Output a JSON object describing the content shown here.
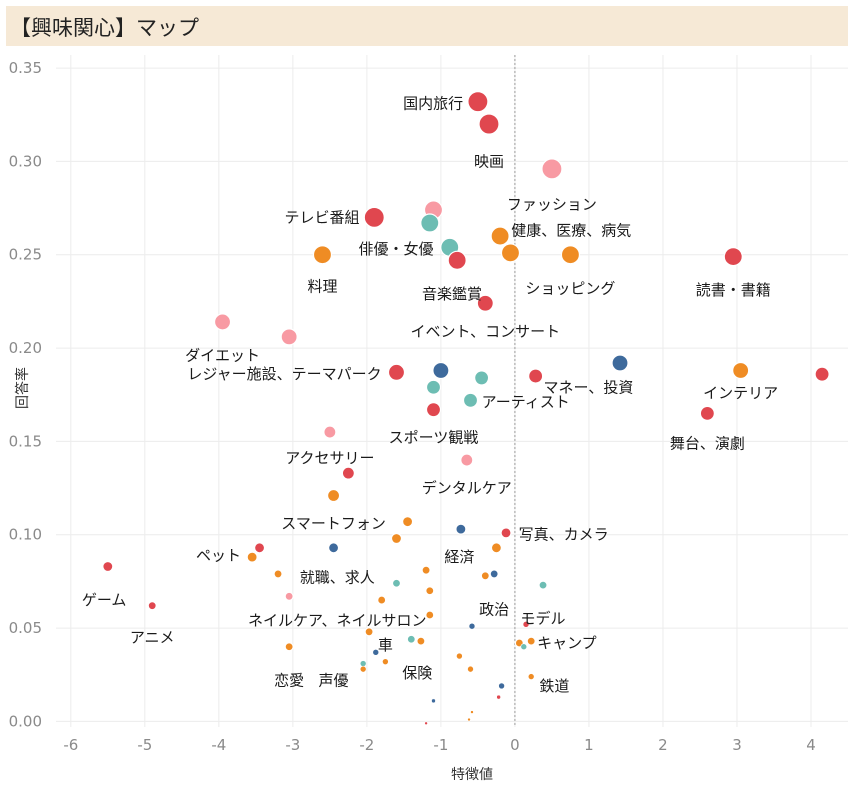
{
  "header": {
    "title": "【興味関心】マップ"
  },
  "colors": {
    "red": "#e0474f",
    "pink": "#f89aa3",
    "orange": "#ef8c24",
    "teal": "#6dbdb3",
    "blue": "#3e6a9c",
    "title_bg": "#f6e9d6",
    "grid": "#ececec",
    "zero_line": "#9a9a9a"
  },
  "chart_data": {
    "type": "scatter",
    "title": "【興味関心】マップ",
    "xlabel": "特徴値",
    "ylabel": "回答率",
    "xlim": [
      -6.2,
      4.5
    ],
    "ylim": [
      -0.003,
      0.357
    ],
    "xticks": [
      "-6",
      "-5",
      "-4",
      "-3",
      "-2",
      "-1",
      "0",
      "1",
      "2",
      "3",
      "4"
    ],
    "yticks": [
      "0.00",
      "0.05",
      "0.10",
      "0.15",
      "0.20",
      "0.25",
      "0.30",
      "0.35"
    ],
    "grid": true,
    "points": [
      {
        "x": -0.5,
        "y": 0.332,
        "c": "red",
        "s": 10,
        "label": "国内旅行",
        "lx": -0.7,
        "ly": 0.331,
        "anchor": "end"
      },
      {
        "x": -0.35,
        "y": 0.32,
        "c": "red",
        "s": 10,
        "label": "映画",
        "lx": -0.35,
        "ly": 0.3,
        "anchor": "middle"
      },
      {
        "x": 0.5,
        "y": 0.296,
        "c": "pink",
        "s": 10,
        "label": "ファッション",
        "lx": 0.5,
        "ly": 0.277,
        "anchor": "middle"
      },
      {
        "x": -1.9,
        "y": 0.27,
        "c": "red",
        "s": 10,
        "label": "テレビ番組",
        "lx": -2.1,
        "ly": 0.27,
        "anchor": "end"
      },
      {
        "x": -1.1,
        "y": 0.274,
        "c": "pink",
        "s": 9
      },
      {
        "x": -1.15,
        "y": 0.267,
        "c": "teal",
        "s": 9
      },
      {
        "x": -0.2,
        "y": 0.26,
        "c": "orange",
        "s": 9,
        "label": "健康、医療、病気",
        "lx": -0.05,
        "ly": 0.263,
        "anchor": "start"
      },
      {
        "x": -0.88,
        "y": 0.254,
        "c": "teal",
        "s": 9,
        "label": "俳優・女優",
        "lx": -1.1,
        "ly": 0.253,
        "anchor": "end"
      },
      {
        "x": -0.78,
        "y": 0.247,
        "c": "red",
        "s": 9,
        "label": "音楽鑑賞",
        "lx": -0.85,
        "ly": 0.229,
        "anchor": "middle"
      },
      {
        "x": -0.06,
        "y": 0.251,
        "c": "orange",
        "s": 9
      },
      {
        "x": 0.75,
        "y": 0.25,
        "c": "orange",
        "s": 9,
        "label": "ショッピング",
        "lx": 0.75,
        "ly": 0.232,
        "anchor": "middle"
      },
      {
        "x": 2.95,
        "y": 0.249,
        "c": "red",
        "s": 9,
        "label": "読書・書籍",
        "lx": 2.95,
        "ly": 0.231,
        "anchor": "middle"
      },
      {
        "x": -2.6,
        "y": 0.25,
        "c": "orange",
        "s": 9,
        "label": "料理",
        "lx": -2.6,
        "ly": 0.233,
        "anchor": "middle"
      },
      {
        "x": -0.4,
        "y": 0.224,
        "c": "red",
        "s": 8,
        "label": "イベント、コンサート",
        "lx": -0.4,
        "ly": 0.209,
        "anchor": "middle"
      },
      {
        "x": -3.95,
        "y": 0.214,
        "c": "pink",
        "s": 8,
        "label": "ダイエット",
        "lx": -3.95,
        "ly": 0.196,
        "anchor": "middle"
      },
      {
        "x": -3.05,
        "y": 0.206,
        "c": "pink",
        "s": 8
      },
      {
        "x": -1.6,
        "y": 0.187,
        "c": "red",
        "s": 8,
        "label": "レジャー施設、テーマパーク",
        "lx": -1.8,
        "ly": 0.186,
        "anchor": "end"
      },
      {
        "x": -1.0,
        "y": 0.188,
        "c": "blue",
        "s": 8
      },
      {
        "x": -1.1,
        "y": 0.179,
        "c": "teal",
        "s": 7
      },
      {
        "x": -0.45,
        "y": 0.184,
        "c": "teal",
        "s": 7
      },
      {
        "x": -0.6,
        "y": 0.172,
        "c": "teal",
        "s": 7,
        "label": "アーティスト",
        "lx": -0.45,
        "ly": 0.171,
        "anchor": "start"
      },
      {
        "x": -1.1,
        "y": 0.167,
        "c": "red",
        "s": 7,
        "label": "スポーツ観戦",
        "lx": -1.1,
        "ly": 0.152,
        "anchor": "middle"
      },
      {
        "x": 0.28,
        "y": 0.185,
        "c": "red",
        "s": 7
      },
      {
        "x": 1.42,
        "y": 0.192,
        "c": "blue",
        "s": 8,
        "label": "マネー、投資",
        "lx": 1.6,
        "ly": 0.179,
        "anchor": "end"
      },
      {
        "x": 3.05,
        "y": 0.188,
        "c": "orange",
        "s": 8,
        "label": "インテリア",
        "lx": 3.05,
        "ly": 0.176,
        "anchor": "middle"
      },
      {
        "x": 4.15,
        "y": 0.186,
        "c": "red",
        "s": 7
      },
      {
        "x": 2.6,
        "y": 0.165,
        "c": "red",
        "s": 7,
        "label": "舞台、演劇",
        "lx": 2.6,
        "ly": 0.149,
        "anchor": "middle"
      },
      {
        "x": -2.5,
        "y": 0.155,
        "c": "pink",
        "s": 6,
        "label": "アクセサリー",
        "lx": -2.5,
        "ly": 0.141,
        "anchor": "middle"
      },
      {
        "x": -0.65,
        "y": 0.14,
        "c": "pink",
        "s": 6,
        "label": "デンタルケア",
        "lx": -0.65,
        "ly": 0.125,
        "anchor": "middle"
      },
      {
        "x": -2.25,
        "y": 0.133,
        "c": "red",
        "s": 6
      },
      {
        "x": -2.45,
        "y": 0.121,
        "c": "orange",
        "s": 6,
        "label": "スマートフォン",
        "lx": -2.45,
        "ly": 0.106,
        "anchor": "middle"
      },
      {
        "x": -1.45,
        "y": 0.107,
        "c": "orange",
        "s": 5
      },
      {
        "x": -1.6,
        "y": 0.098,
        "c": "orange",
        "s": 5
      },
      {
        "x": -0.73,
        "y": 0.103,
        "c": "blue",
        "s": 5
      },
      {
        "x": -0.12,
        "y": 0.101,
        "c": "red",
        "s": 5,
        "label": "写真、カメラ",
        "lx": 0.05,
        "ly": 0.1,
        "anchor": "start"
      },
      {
        "x": -0.25,
        "y": 0.093,
        "c": "orange",
        "s": 5,
        "label": "経済",
        "lx": -0.75,
        "ly": 0.088,
        "anchor": "middle"
      },
      {
        "x": -2.45,
        "y": 0.093,
        "c": "blue",
        "s": 5
      },
      {
        "x": -3.45,
        "y": 0.093,
        "c": "red",
        "s": 5
      },
      {
        "x": -3.55,
        "y": 0.088,
        "c": "orange",
        "s": 5,
        "label": "ペット",
        "lx": -3.7,
        "ly": 0.089,
        "anchor": "end"
      },
      {
        "x": -5.5,
        "y": 0.083,
        "c": "red",
        "s": 5,
        "label": "ゲーム",
        "lx": -5.55,
        "ly": 0.065,
        "anchor": "middle"
      },
      {
        "x": -3.2,
        "y": 0.079,
        "c": "orange",
        "s": 4,
        "label": "就職、求人",
        "lx": -2.4,
        "ly": 0.077,
        "anchor": "middle"
      },
      {
        "x": -1.6,
        "y": 0.074,
        "c": "teal",
        "s": 4
      },
      {
        "x": -1.2,
        "y": 0.081,
        "c": "orange",
        "s": 4
      },
      {
        "x": -1.15,
        "y": 0.07,
        "c": "orange",
        "s": 4
      },
      {
        "x": -0.4,
        "y": 0.078,
        "c": "orange",
        "s": 4
      },
      {
        "x": -0.28,
        "y": 0.079,
        "c": "blue",
        "s": 4,
        "label": "政治",
        "lx": -0.28,
        "ly": 0.06,
        "anchor": "middle"
      },
      {
        "x": 0.38,
        "y": 0.073,
        "c": "teal",
        "s": 4,
        "label": "モデル",
        "lx": 0.38,
        "ly": 0.055,
        "anchor": "middle"
      },
      {
        "x": -3.05,
        "y": 0.067,
        "c": "pink",
        "s": 4
      },
      {
        "x": -1.8,
        "y": 0.065,
        "c": "orange",
        "s": 4
      },
      {
        "x": -4.9,
        "y": 0.062,
        "c": "red",
        "s": 4,
        "label": "アニメ",
        "lx": -4.9,
        "ly": 0.045,
        "anchor": "middle"
      },
      {
        "x": -1.15,
        "y": 0.057,
        "c": "orange",
        "s": 4,
        "label": "ネイルケア、ネイルサロン",
        "lx": -2.4,
        "ly": 0.054,
        "anchor": "middle"
      },
      {
        "x": -0.58,
        "y": 0.051,
        "c": "blue",
        "s": 3
      },
      {
        "x": 0.15,
        "y": 0.052,
        "c": "red",
        "s": 3
      },
      {
        "x": -1.97,
        "y": 0.048,
        "c": "orange",
        "s": 4,
        "label": "車",
        "lx": -1.75,
        "ly": 0.041,
        "anchor": "middle"
      },
      {
        "x": -1.4,
        "y": 0.044,
        "c": "teal",
        "s": 4
      },
      {
        "x": -1.27,
        "y": 0.043,
        "c": "orange",
        "s": 4
      },
      {
        "x": 0.06,
        "y": 0.042,
        "c": "orange",
        "s": 4
      },
      {
        "x": 0.22,
        "y": 0.043,
        "c": "orange",
        "s": 4,
        "label": "キャンプ",
        "lx": 0.3,
        "ly": 0.042,
        "anchor": "start"
      },
      {
        "x": 0.12,
        "y": 0.04,
        "c": "teal",
        "s": 3
      },
      {
        "x": -3.05,
        "y": 0.04,
        "c": "orange",
        "s": 4
      },
      {
        "x": -1.88,
        "y": 0.037,
        "c": "blue",
        "s": 3
      },
      {
        "x": -1.75,
        "y": 0.032,
        "c": "orange",
        "s": 3,
        "label": "保険",
        "lx": -1.32,
        "ly": 0.026,
        "anchor": "middle"
      },
      {
        "x": -2.05,
        "y": 0.031,
        "c": "teal",
        "s": 3,
        "label": "声優",
        "lx": -2.45,
        "ly": 0.022,
        "anchor": "middle"
      },
      {
        "x": -2.05,
        "y": 0.028,
        "c": "orange",
        "s": 3,
        "label": "恋愛",
        "lx": -3.05,
        "ly": 0.022,
        "anchor": "middle"
      },
      {
        "x": -0.75,
        "y": 0.035,
        "c": "orange",
        "s": 3
      },
      {
        "x": -0.6,
        "y": 0.028,
        "c": "orange",
        "s": 3
      },
      {
        "x": 0.22,
        "y": 0.024,
        "c": "orange",
        "s": 3,
        "label": "鉄道",
        "lx": 0.33,
        "ly": 0.019,
        "anchor": "start"
      },
      {
        "x": -0.18,
        "y": 0.019,
        "c": "blue",
        "s": 3
      },
      {
        "x": -1.1,
        "y": 0.011,
        "c": "blue",
        "s": 2
      },
      {
        "x": -0.22,
        "y": 0.013,
        "c": "red",
        "s": 2
      },
      {
        "x": -0.58,
        "y": 0.005,
        "c": "orange",
        "s": 1.5
      },
      {
        "x": -0.62,
        "y": 0.001,
        "c": "orange",
        "s": 1.5
      },
      {
        "x": -1.2,
        "y": -0.001,
        "c": "red",
        "s": 1.5
      }
    ]
  }
}
